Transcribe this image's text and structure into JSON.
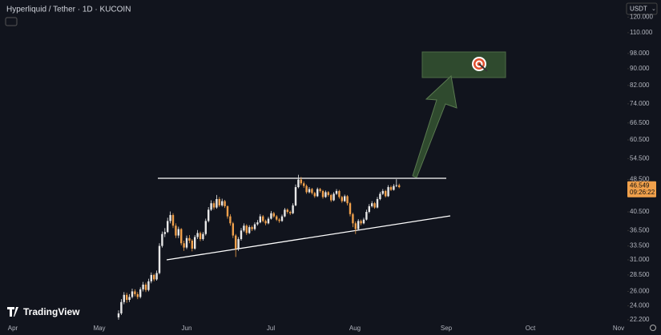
{
  "chart_data": {
    "type": "candlestick",
    "title": "Hyperliquid / Tether · 1D · KUCOIN",
    "currency": "USDT",
    "brand": "TradingView",
    "up_color": "#e8e8e8",
    "down_color": "#f0a04b",
    "log_scale": true,
    "categories": [
      "Apr",
      "May",
      "Jun",
      "Jul",
      "Aug",
      "Sep",
      "Oct",
      "Nov"
    ],
    "ylim": [
      21.7,
      132
    ],
    "yticks": [
      {
        "value": 120,
        "label": "120.000"
      },
      {
        "value": 110,
        "label": "110.000"
      },
      {
        "value": 98,
        "label": "98.000"
      },
      {
        "value": 90,
        "label": "90.000"
      },
      {
        "value": 82,
        "label": "82.000"
      },
      {
        "value": 74,
        "label": "74.000"
      },
      {
        "value": 66.5,
        "label": "66.500"
      },
      {
        "value": 60.5,
        "label": "60.500"
      },
      {
        "value": 54.5,
        "label": "54.500"
      },
      {
        "value": 48.5,
        "label": "48.500"
      },
      {
        "value": 40.5,
        "label": "40.500"
      },
      {
        "value": 36.5,
        "label": "36.500"
      },
      {
        "value": 33.5,
        "label": "33.500"
      },
      {
        "value": 31,
        "label": "31.000"
      },
      {
        "value": 28.5,
        "label": "28.500"
      },
      {
        "value": 26,
        "label": "26.000"
      },
      {
        "value": 24,
        "label": "24.000"
      },
      {
        "value": 22.2,
        "label": "22.200"
      }
    ],
    "last_price": 46.549,
    "countdown": "09:26:22",
    "candles": [
      [
        22.5,
        23.4,
        22.2,
        23.0
      ],
      [
        23.0,
        24.9,
        22.8,
        24.5
      ],
      [
        24.5,
        25.9,
        24.2,
        25.5
      ],
      [
        25.5,
        25.8,
        24.4,
        24.8
      ],
      [
        24.8,
        25.6,
        24.5,
        25.2
      ],
      [
        25.2,
        26.4,
        25.0,
        26.0
      ],
      [
        26.0,
        26.3,
        25.3,
        25.6
      ],
      [
        25.6,
        25.9,
        24.9,
        25.2
      ],
      [
        25.2,
        26.6,
        25.0,
        26.3
      ],
      [
        26.3,
        27.4,
        26.0,
        27.0
      ],
      [
        27.0,
        27.3,
        25.9,
        26.2
      ],
      [
        26.2,
        27.9,
        26.0,
        27.5
      ],
      [
        27.5,
        28.9,
        27.2,
        28.5
      ],
      [
        28.5,
        28.7,
        27.5,
        27.8
      ],
      [
        27.8,
        29.2,
        27.6,
        28.8
      ],
      [
        28.8,
        34.0,
        28.6,
        33.5
      ],
      [
        33.5,
        36.3,
        33.2,
        35.8
      ],
      [
        35.8,
        37.0,
        35.2,
        36.2
      ],
      [
        36.2,
        39.2,
        36.0,
        38.5
      ],
      [
        38.5,
        40.6,
        38.0,
        39.8
      ],
      [
        39.8,
        40.2,
        37.0,
        37.5
      ],
      [
        37.5,
        38.0,
        35.0,
        35.5
      ],
      [
        35.5,
        37.3,
        35.0,
        36.8
      ],
      [
        36.8,
        37.0,
        33.6,
        34.0
      ],
      [
        34.0,
        34.5,
        32.6,
        33.2
      ],
      [
        33.2,
        35.5,
        32.9,
        35.0
      ],
      [
        35.0,
        35.6,
        34.0,
        34.5
      ],
      [
        34.5,
        34.8,
        32.5,
        33.0
      ],
      [
        33.0,
        35.6,
        32.8,
        35.2
      ],
      [
        35.2,
        36.6,
        34.8,
        36.0
      ],
      [
        36.0,
        36.3,
        34.4,
        34.8
      ],
      [
        34.8,
        36.2,
        34.5,
        35.8
      ],
      [
        35.8,
        39.0,
        35.5,
        38.5
      ],
      [
        38.5,
        41.6,
        38.2,
        41.0
      ],
      [
        41.0,
        43.2,
        40.7,
        42.5
      ],
      [
        42.5,
        43.0,
        41.0,
        41.5
      ],
      [
        41.5,
        44.5,
        41.2,
        43.5
      ],
      [
        43.5,
        44.0,
        41.6,
        42.0
      ],
      [
        42.0,
        43.6,
        41.7,
        43.0
      ],
      [
        43.0,
        43.3,
        41.4,
        41.8
      ],
      [
        41.8,
        42.0,
        39.0,
        39.5
      ],
      [
        39.5,
        40.0,
        37.5,
        38.0
      ],
      [
        38.0,
        38.3,
        35.0,
        35.5
      ],
      [
        35.5,
        35.8,
        31.5,
        33.0
      ],
      [
        33.0,
        35.2,
        32.6,
        34.8
      ],
      [
        34.8,
        37.0,
        34.5,
        36.5
      ],
      [
        36.5,
        38.0,
        36.2,
        37.5
      ],
      [
        37.5,
        37.8,
        35.6,
        36.0
      ],
      [
        36.0,
        37.6,
        35.8,
        37.2
      ],
      [
        37.2,
        37.5,
        36.4,
        36.8
      ],
      [
        36.8,
        38.2,
        36.5,
        37.8
      ],
      [
        37.8,
        38.7,
        37.5,
        38.2
      ],
      [
        38.2,
        40.0,
        38.0,
        39.5
      ],
      [
        39.5,
        39.8,
        38.2,
        38.5
      ],
      [
        38.5,
        38.8,
        37.6,
        38.0
      ],
      [
        38.0,
        39.4,
        37.8,
        39.0
      ],
      [
        39.0,
        40.7,
        38.8,
        40.2
      ],
      [
        40.2,
        40.5,
        39.2,
        39.5
      ],
      [
        39.5,
        39.8,
        38.5,
        38.8
      ],
      [
        38.8,
        39.1,
        38.1,
        38.5
      ],
      [
        38.5,
        39.9,
        38.3,
        39.5
      ],
      [
        39.5,
        41.4,
        39.3,
        41.0
      ],
      [
        41.0,
        41.3,
        40.1,
        40.5
      ],
      [
        40.5,
        40.8,
        39.8,
        40.2
      ],
      [
        40.2,
        42.5,
        40.0,
        42.0
      ],
      [
        42.0,
        47.2,
        41.8,
        46.5
      ],
      [
        46.5,
        49.8,
        46.2,
        48.5
      ],
      [
        48.5,
        49.2,
        47.0,
        47.5
      ],
      [
        47.5,
        48.0,
        46.3,
        46.8
      ],
      [
        46.8,
        47.2,
        44.8,
        45.2
      ],
      [
        45.2,
        46.5,
        44.9,
        46.0
      ],
      [
        46.0,
        46.3,
        44.6,
        45.0
      ],
      [
        45.0,
        45.3,
        43.8,
        44.2
      ],
      [
        44.2,
        46.4,
        44.0,
        46.0
      ],
      [
        46.0,
        46.3,
        45.1,
        45.5
      ],
      [
        45.5,
        45.8,
        43.6,
        44.0
      ],
      [
        44.0,
        45.6,
        43.8,
        45.2
      ],
      [
        45.2,
        45.5,
        44.1,
        44.5
      ],
      [
        44.5,
        44.8,
        42.8,
        43.2
      ],
      [
        43.2,
        45.2,
        43.0,
        44.8
      ],
      [
        44.8,
        46.0,
        44.5,
        45.5
      ],
      [
        45.5,
        45.8,
        43.6,
        44.0
      ],
      [
        44.0,
        44.3,
        42.6,
        43.0
      ],
      [
        43.0,
        44.6,
        42.8,
        44.2
      ],
      [
        44.2,
        44.5,
        42.0,
        42.5
      ],
      [
        42.5,
        42.8,
        39.5,
        40.0
      ],
      [
        40.0,
        40.3,
        37.2,
        38.0
      ],
      [
        38.0,
        38.4,
        35.8,
        36.8
      ],
      [
        36.8,
        38.9,
        36.5,
        38.5
      ],
      [
        38.5,
        38.8,
        37.6,
        38.0
      ],
      [
        38.0,
        39.2,
        37.8,
        38.8
      ],
      [
        38.8,
        41.0,
        38.6,
        40.5
      ],
      [
        40.5,
        42.3,
        40.2,
        41.8
      ],
      [
        41.8,
        43.0,
        41.5,
        42.5
      ],
      [
        42.5,
        42.8,
        41.2,
        41.5
      ],
      [
        41.5,
        44.0,
        41.3,
        43.5
      ],
      [
        43.5,
        45.3,
        43.2,
        44.8
      ],
      [
        44.8,
        46.0,
        44.5,
        45.5
      ],
      [
        45.5,
        45.8,
        43.9,
        44.2
      ],
      [
        44.2,
        47.0,
        44.0,
        46.5
      ],
      [
        46.5,
        46.9,
        45.5,
        45.8
      ],
      [
        45.8,
        47.3,
        45.6,
        46.8
      ],
      [
        46.8,
        48.6,
        46.5,
        47.0
      ],
      [
        47.0,
        47.4,
        46.2,
        46.5
      ]
    ]
  }
}
